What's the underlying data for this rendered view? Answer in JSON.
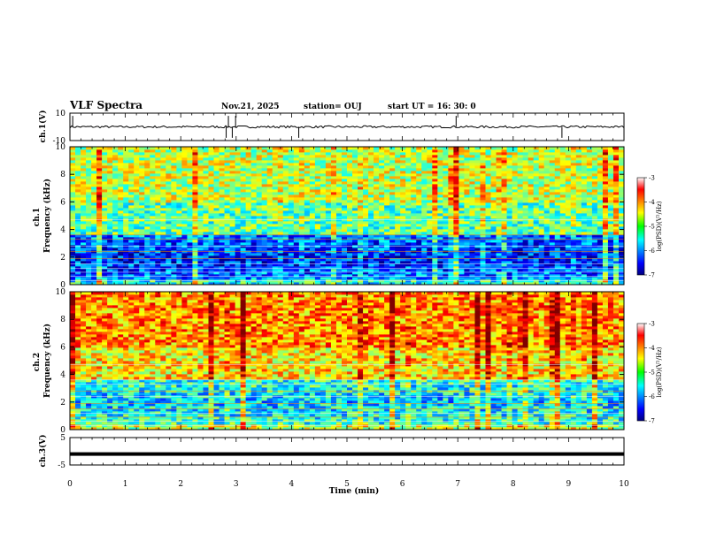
{
  "header": {
    "title": "VLF Spectra",
    "date": "Nov.21, 2025",
    "station": "station= OUJ",
    "start": "start  UT =  16: 30: 0"
  },
  "chart_data": [
    {
      "type": "line",
      "panel": "ch1-waveform",
      "ylabel": "ch.1(V)",
      "ylim": [
        -10,
        10
      ],
      "yticks": [
        "10",
        "-10"
      ],
      "baseline": 0,
      "spike_minutes": [
        0.05,
        2.82,
        2.86,
        2.93,
        2.99,
        4.13,
        6.97,
        8.88
      ]
    },
    {
      "type": "heatmap",
      "panel": "ch1-spectrogram",
      "ylabel": "ch.1\nFrequency (kHz)",
      "ylim": [
        0,
        10
      ],
      "yticks": [
        "0",
        "2",
        "4",
        "6",
        "8",
        "10"
      ],
      "xlim": [
        0,
        10
      ],
      "colorbar": {
        "label": "log(PSD)(V²/Hz)",
        "range": [
          -7,
          -3
        ],
        "ticks": [
          "-3",
          "-4",
          "-5",
          "-6",
          "-7"
        ]
      },
      "level": -5.1
    },
    {
      "type": "heatmap",
      "panel": "ch2-spectrogram",
      "ylabel": "ch.2\nFrequency (kHz)",
      "ylim": [
        0,
        10
      ],
      "yticks": [
        "0",
        "2",
        "4",
        "6",
        "8",
        "10"
      ],
      "xlim": [
        0,
        10
      ],
      "colorbar": {
        "label": "log(PSD)(V²/Hz)",
        "range": [
          -7,
          -3
        ],
        "ticks": [
          "-3",
          "-4",
          "-5",
          "-6",
          "-7"
        ]
      },
      "level": -4.4
    },
    {
      "type": "line",
      "panel": "ch3-waveform",
      "ylabel": "ch.3(V)",
      "ylim": [
        -5,
        5
      ],
      "yticks": [
        "5",
        "-5"
      ],
      "baseline": -1,
      "xlabel": "Time (min)",
      "xlim": [
        0,
        10
      ],
      "xticks": [
        "0",
        "1",
        "2",
        "3",
        "4",
        "5",
        "6",
        "7",
        "8",
        "9",
        "10"
      ]
    }
  ]
}
